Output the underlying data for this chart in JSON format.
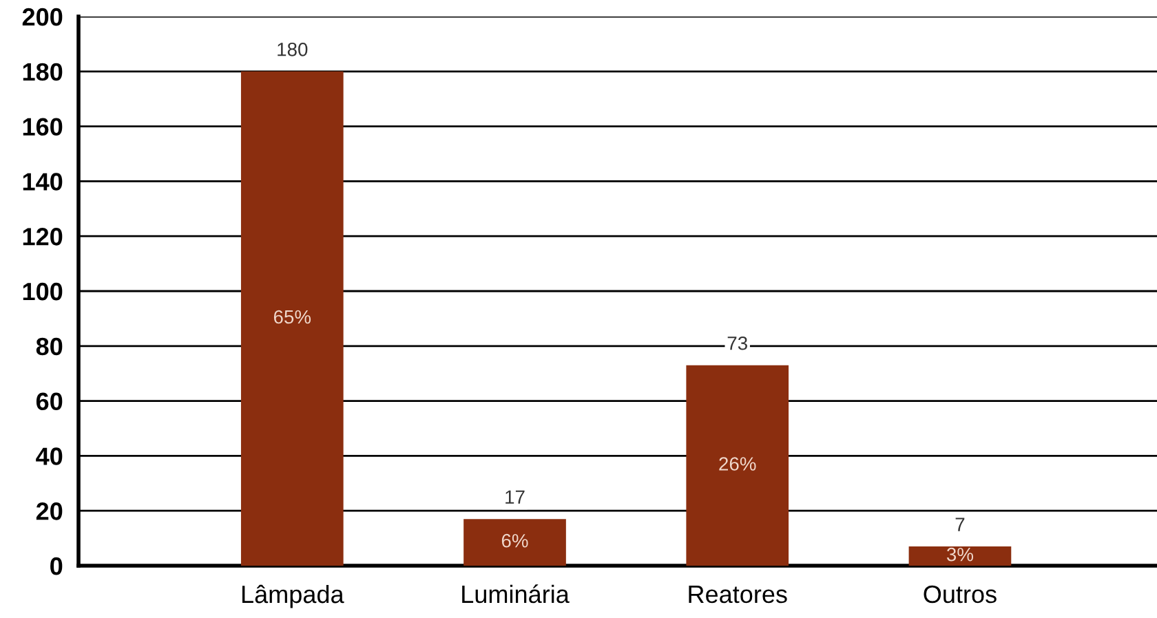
{
  "chart_data": {
    "type": "bar",
    "categories": [
      "Lâmpada",
      "Luminária",
      "Reatores",
      "Outros"
    ],
    "values": [
      180,
      17,
      73,
      7
    ],
    "color": "#8b2e0f",
    "ylim": [
      0,
      200
    ],
    "yticks": [
      0,
      20,
      40,
      60,
      80,
      100,
      120,
      140,
      160,
      180,
      200
    ],
    "grid": "y",
    "data_labels": true,
    "annotations": [
      "65%",
      "6%",
      "26%",
      "3%"
    ]
  }
}
